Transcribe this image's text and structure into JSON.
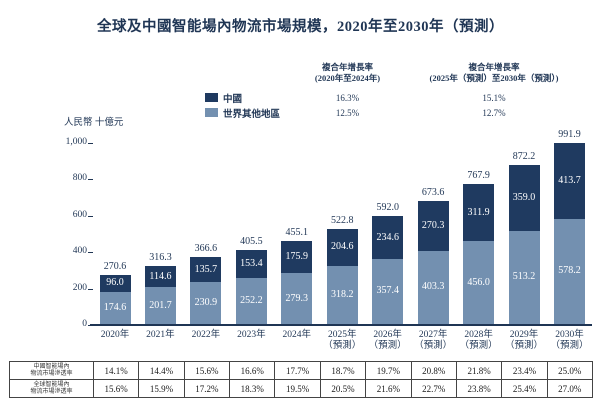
{
  "title": "全球及中國智能場內物流市場規模，2020年至2030年（預測）",
  "colors": {
    "china": "#1f3a60",
    "rest_of_world": "#7390b0",
    "axis_text": "#1f3554",
    "bar_inner_text": "#ffffff"
  },
  "cagr": {
    "header_col1": [
      "複合年增長率",
      "(2020年至2024年)"
    ],
    "header_col2": [
      "複合年增長率",
      "(2025年（預測）至2030年（預測）)"
    ],
    "rows": [
      {
        "label": "中國",
        "color": "#1f3a60",
        "cagr_2020_2024": "16.3%",
        "cagr_2025_2030": "15.1%"
      },
      {
        "label": "世界其他地區",
        "color": "#7390b0",
        "cagr_2020_2024": "12.5%",
        "cagr_2025_2030": "12.7%"
      }
    ]
  },
  "chart_data": {
    "type": "bar",
    "stacked": true,
    "title": "全球及中國智能場內物流市場規模，2020年至2030年（預測）",
    "unit": "人民幣 十億元",
    "ylim": [
      0,
      1000
    ],
    "y_ticks": [
      "1,000",
      "800",
      "600",
      "400",
      "200",
      "0"
    ],
    "grid": false,
    "legend_position": "top",
    "categories": [
      [
        "2020年"
      ],
      [
        "2021年"
      ],
      [
        "2022年"
      ],
      [
        "2023年"
      ],
      [
        "2024年"
      ],
      [
        "2025年",
        "（預測）"
      ],
      [
        "2026年",
        "（預測）"
      ],
      [
        "2027年",
        "（預測）"
      ],
      [
        "2028年",
        "（預測）"
      ],
      [
        "2029年",
        "（預測）"
      ],
      [
        "2030年",
        "（預測）"
      ]
    ],
    "series": [
      {
        "name": "中國",
        "color": "#1f3a60",
        "values": [
          96.0,
          114.6,
          135.7,
          153.4,
          175.9,
          204.6,
          234.6,
          270.3,
          311.9,
          359.0,
          413.7
        ]
      },
      {
        "name": "世界其他地區",
        "color": "#7390b0",
        "values": [
          174.6,
          201.7,
          230.9,
          252.2,
          279.3,
          318.2,
          357.4,
          403.3,
          456.0,
          513.2,
          578.2
        ]
      }
    ],
    "totals": [
      270.6,
      316.3,
      366.6,
      405.5,
      455.1,
      522.8,
      592.0,
      673.6,
      767.9,
      872.2,
      991.9
    ]
  },
  "table": {
    "rows": [
      {
        "label": [
          "中國智能場內",
          "物流市場滲透率"
        ],
        "values": [
          "14.1%",
          "14.4%",
          "15.6%",
          "16.6%",
          "17.7%",
          "18.7%",
          "19.7%",
          "20.8%",
          "21.8%",
          "23.4%",
          "25.0%"
        ]
      },
      {
        "label": [
          "全球智能場內",
          "物流市場滲透率"
        ],
        "values": [
          "15.6%",
          "15.9%",
          "17.2%",
          "18.3%",
          "19.5%",
          "20.5%",
          "21.6%",
          "22.7%",
          "23.8%",
          "25.4%",
          "27.0%"
        ]
      }
    ]
  }
}
